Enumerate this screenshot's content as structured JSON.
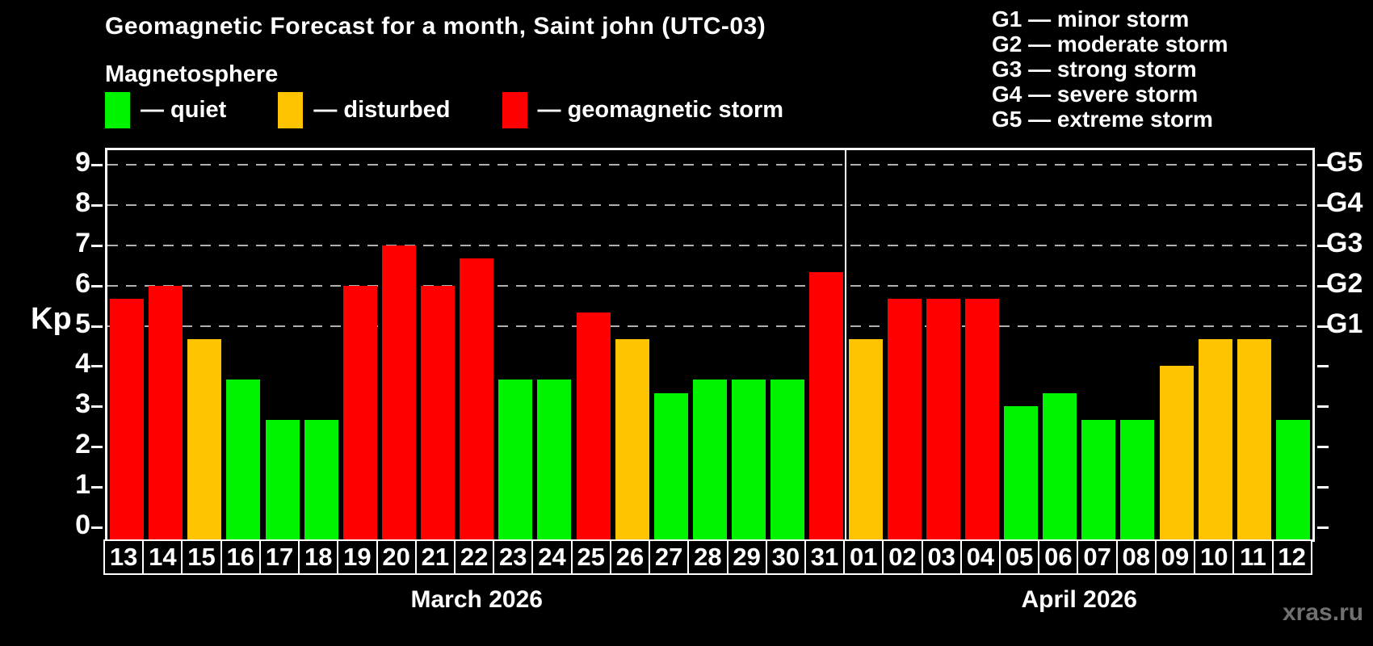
{
  "title": "Geomagnetic Forecast for a month, Saint john (UTC-03)",
  "subtitle": "Magnetosphere",
  "watermark": "xras.ru",
  "colors": {
    "quiet": "#00f400",
    "disturbed": "#ffc400",
    "storm": "#ff0000",
    "grid": "#b0b0b0",
    "axis": "#ffffff",
    "watermark_text": "#707070"
  },
  "legend": {
    "items": [
      {
        "key": "quiet",
        "label": "— quiet"
      },
      {
        "key": "disturbed",
        "label": "— disturbed"
      },
      {
        "key": "storm",
        "label": "— geomagnetic storm"
      }
    ]
  },
  "g_legend": {
    "lines": [
      "G1 — minor storm",
      "G2 — moderate storm",
      "G3 — strong storm",
      "G4 — severe storm",
      "G5 — extreme storm"
    ]
  },
  "chart_data": {
    "type": "bar",
    "title": "Geomagnetic Forecast for a month, Saint john (UTC-03)",
    "xlabel": "",
    "ylabel": "Kp",
    "ylim": [
      0,
      9.4
    ],
    "grid": "dashed horizontal lines at Kp 5-9 only",
    "gridlines_kp": [
      5,
      6,
      7,
      8,
      9
    ],
    "left_ticks": [
      0,
      1,
      2,
      3,
      4,
      5,
      6,
      7,
      8,
      9
    ],
    "right_labels": [
      {
        "kp": 5,
        "label": "G1"
      },
      {
        "kp": 6,
        "label": "G2"
      },
      {
        "kp": 7,
        "label": "G3"
      },
      {
        "kp": 8,
        "label": "G4"
      },
      {
        "kp": 9,
        "label": "G5"
      }
    ],
    "legend_position": "top-left",
    "months": [
      {
        "label": "March 2026",
        "days": [
          {
            "date": "13",
            "kp": 5.67,
            "status": "storm"
          },
          {
            "date": "14",
            "kp": 6.0,
            "status": "storm"
          },
          {
            "date": "15",
            "kp": 4.67,
            "status": "disturbed"
          },
          {
            "date": "16",
            "kp": 3.67,
            "status": "quiet"
          },
          {
            "date": "17",
            "kp": 2.67,
            "status": "quiet"
          },
          {
            "date": "18",
            "kp": 2.67,
            "status": "quiet"
          },
          {
            "date": "19",
            "kp": 6.0,
            "status": "storm"
          },
          {
            "date": "20",
            "kp": 7.0,
            "status": "storm"
          },
          {
            "date": "21",
            "kp": 6.0,
            "status": "storm"
          },
          {
            "date": "22",
            "kp": 6.67,
            "status": "storm"
          },
          {
            "date": "23",
            "kp": 3.67,
            "status": "quiet"
          },
          {
            "date": "24",
            "kp": 3.67,
            "status": "quiet"
          },
          {
            "date": "25",
            "kp": 5.33,
            "status": "storm"
          },
          {
            "date": "26",
            "kp": 4.67,
            "status": "disturbed"
          },
          {
            "date": "27",
            "kp": 3.33,
            "status": "quiet"
          },
          {
            "date": "28",
            "kp": 3.67,
            "status": "quiet"
          },
          {
            "date": "29",
            "kp": 3.67,
            "status": "quiet"
          },
          {
            "date": "30",
            "kp": 3.67,
            "status": "quiet"
          },
          {
            "date": "31",
            "kp": 6.33,
            "status": "storm"
          }
        ]
      },
      {
        "label": "April 2026",
        "days": [
          {
            "date": "01",
            "kp": 4.67,
            "status": "disturbed"
          },
          {
            "date": "02",
            "kp": 5.67,
            "status": "storm"
          },
          {
            "date": "03",
            "kp": 5.67,
            "status": "storm"
          },
          {
            "date": "04",
            "kp": 5.67,
            "status": "storm"
          },
          {
            "date": "05",
            "kp": 3.0,
            "status": "quiet"
          },
          {
            "date": "06",
            "kp": 3.33,
            "status": "quiet"
          },
          {
            "date": "07",
            "kp": 2.67,
            "status": "quiet"
          },
          {
            "date": "08",
            "kp": 2.67,
            "status": "quiet"
          },
          {
            "date": "09",
            "kp": 4.0,
            "status": "disturbed"
          },
          {
            "date": "10",
            "kp": 4.67,
            "status": "disturbed"
          },
          {
            "date": "11",
            "kp": 4.67,
            "status": "disturbed"
          },
          {
            "date": "12",
            "kp": 2.67,
            "status": "quiet"
          }
        ]
      }
    ]
  }
}
